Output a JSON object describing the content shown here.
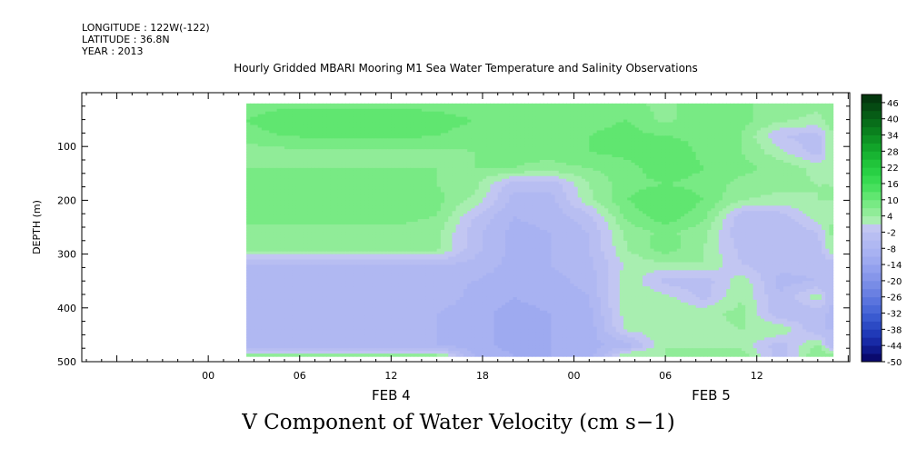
{
  "header": {
    "longitude": "LONGITUDE : 122W(-122)",
    "latitude": "LATITUDE : 36.8N",
    "year": "YEAR : 2013"
  },
  "title": "Hourly Gridded MBARI Mooring M1 Sea Water Temperature and Salinity Observations",
  "bottom_title": "V Component of Water Velocity (cm s−1)",
  "chart_data": {
    "type": "heatmap",
    "title": "Hourly Gridded MBARI Mooring M1 Sea Water Temperature and Salinity Observations",
    "variable": "V Component of Water Velocity (cm s−1)",
    "ylabel": "DEPTH (m)",
    "y_reversed": true,
    "ylim": [
      500,
      0
    ],
    "y_ticks": [
      100,
      200,
      300,
      400,
      500
    ],
    "x_tick_labels": [
      "00",
      "06",
      "12",
      "18",
      "00",
      "06",
      "12"
    ],
    "x_tick_hours": [
      0,
      6,
      12,
      18,
      24,
      30,
      36
    ],
    "x_date_labels": [
      {
        "label": "FEB  4",
        "hour": 12
      },
      {
        "label": "FEB  5",
        "hour": 33
      }
    ],
    "data_start_hour": 2.5,
    "data_end_hour": 41,
    "depth_range": [
      20,
      490
    ],
    "colorbar_labels": [
      "46",
      "40",
      "34",
      "28",
      "22",
      "16",
      "10",
      "4",
      "-2",
      "-8",
      "-14",
      "-20",
      "-26",
      "-32",
      "-38",
      "-44",
      "-50"
    ],
    "colorbar_levels": [
      -50,
      -47,
      -44,
      -41,
      -38,
      -35,
      -32,
      -29,
      -26,
      -23,
      -20,
      -17,
      -14,
      -11,
      -8,
      -5,
      -2,
      1,
      4,
      7,
      10,
      13,
      16,
      19,
      22,
      25,
      28,
      31,
      34,
      37,
      40,
      43,
      46,
      49
    ],
    "colorbar_colors": [
      "#0a0a6e",
      "#101a8c",
      "#182aa6",
      "#203ab8",
      "#2c4ac4",
      "#3a5ad0",
      "#4a68d8",
      "#5a74de",
      "#6a80e2",
      "#788ce6",
      "#8696ea",
      "#92a0ee",
      "#9eaaf0",
      "#a8b2f2",
      "#b0b8f2",
      "#b8bef2",
      "#c2c6f2",
      "#a8eeb0",
      "#90ec98",
      "#78ea84",
      "#60e670",
      "#48e05e",
      "#36da50",
      "#28d044",
      "#20c43a",
      "#18b432",
      "#12a42a",
      "#0e9224",
      "#0a801e",
      "#086e1a",
      "#065c16",
      "#054a12",
      "#04380e"
    ],
    "grid_depths": [
      20,
      50,
      80,
      110,
      140,
      170,
      200,
      230,
      260,
      290,
      320,
      350,
      380,
      410,
      440,
      470,
      490
    ],
    "grid_hours": [
      2.5,
      5,
      7.5,
      10,
      12.5,
      15,
      17.5,
      20,
      22.5,
      25,
      27.5,
      30,
      32.5,
      35,
      37.5,
      40,
      41
    ],
    "values": [
      [
        8,
        9,
        9,
        9,
        9,
        9,
        8,
        9,
        10,
        9,
        8,
        6,
        9,
        8,
        5,
        5,
        6
      ],
      [
        10,
        12,
        12,
        12,
        12,
        11,
        10,
        9,
        8,
        9,
        10,
        6,
        9,
        8,
        5,
        3,
        6
      ],
      [
        9,
        10,
        11,
        11,
        11,
        10,
        9,
        10,
        9,
        10,
        11,
        10,
        9,
        7,
        -2,
        -3,
        4
      ],
      [
        5,
        6,
        6,
        6,
        6,
        6,
        7,
        8,
        8,
        10,
        11,
        13,
        9,
        7,
        2,
        -4,
        4
      ],
      [
        7,
        7,
        7,
        7,
        7,
        7,
        7,
        7,
        6,
        7,
        9,
        12,
        10,
        8,
        6,
        3,
        4
      ],
      [
        8,
        8,
        8,
        8,
        8,
        7,
        5,
        -4,
        -4,
        4,
        9,
        10,
        9,
        6,
        5,
        4,
        4
      ],
      [
        9,
        9,
        9,
        9,
        9,
        8,
        3,
        -6,
        -6,
        3,
        10,
        13,
        10,
        4,
        3,
        4,
        4
      ],
      [
        8,
        8,
        8,
        8,
        8,
        7,
        -2,
        -8,
        -7,
        -3,
        8,
        12,
        8,
        -4,
        -4,
        3,
        4
      ],
      [
        6,
        6,
        6,
        6,
        6,
        5,
        -4,
        -9,
        -8,
        -5,
        5,
        8,
        5,
        -5,
        -5,
        -2,
        5
      ],
      [
        6,
        6,
        6,
        6,
        6,
        5,
        -4,
        -9,
        -8,
        -5,
        4,
        9,
        4,
        -3,
        -5,
        -4,
        4
      ],
      [
        -6,
        -6,
        -6,
        -6,
        -6,
        -5,
        -6,
        -9,
        -8,
        -6,
        2,
        3,
        4,
        -2,
        -4,
        -4,
        -4
      ],
      [
        -7,
        -7,
        -7,
        -7,
        -7,
        -7,
        -8,
        -10,
        -9,
        -7,
        3,
        -3,
        -4,
        3,
        -6,
        -5,
        -5
      ],
      [
        -6,
        -6,
        -6,
        -6,
        -6,
        -6,
        -9,
        -11,
        -10,
        -8,
        4,
        2,
        -3,
        4,
        -5,
        3,
        -5
      ],
      [
        -7,
        -7,
        -7,
        -7,
        -7,
        -8,
        -10,
        -12,
        -11,
        -9,
        3,
        4,
        3,
        5,
        -5,
        -4,
        -6
      ],
      [
        -8,
        -8,
        -8,
        -8,
        -8,
        -8,
        -10,
        -12,
        -11,
        -10,
        2,
        3,
        3,
        4,
        4,
        -5,
        -5
      ],
      [
        -8,
        -8,
        -8,
        -8,
        -8,
        -8,
        -10,
        -12,
        -11,
        -9,
        -7,
        4,
        3,
        3,
        -4,
        5,
        -6
      ],
      [
        6,
        6,
        6,
        6,
        6,
        6,
        -8,
        -11,
        -11,
        -10,
        5,
        4,
        7,
        6,
        -4,
        7,
        6
      ]
    ]
  }
}
